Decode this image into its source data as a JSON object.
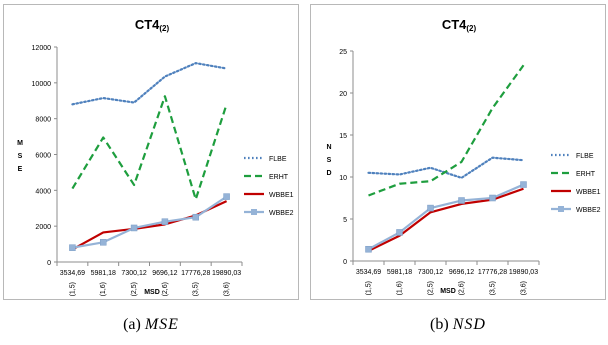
{
  "chart_data": [
    {
      "type": "line",
      "title": "CT4",
      "title_sub": "(2)",
      "xlabel": "MSD",
      "ylabel": [
        "M",
        "S",
        "E"
      ],
      "categories": [
        "3534,69",
        "5981,18",
        "7300,12",
        "9696,12",
        "17776,28",
        "19890,03"
      ],
      "category_pairs": [
        "(1,5)",
        "(1,6)",
        "(2,5)",
        "(2,6)",
        "(3,5)",
        "(3,6)"
      ],
      "ylim": [
        0,
        12000
      ],
      "yticks": [
        "0",
        "2000",
        "4000",
        "6000",
        "8000",
        "10000",
        "12000"
      ],
      "grid": false,
      "legend_position": "right",
      "series": [
        {
          "name": "FLBE",
          "values": [
            8800,
            9150,
            8900,
            10350,
            11100,
            10800
          ],
          "color": "#4f81bd",
          "style": "dotted"
        },
        {
          "name": "ERHT",
          "values": [
            4100,
            6950,
            4300,
            9250,
            3500,
            8800
          ],
          "color": "#1e9e3e",
          "style": "dashed"
        },
        {
          "name": "WBBE1",
          "values": [
            700,
            1650,
            1850,
            2100,
            2600,
            3400
          ],
          "color": "#c00000",
          "style": "solid"
        },
        {
          "name": "WBBE2",
          "values": [
            800,
            1100,
            1900,
            2250,
            2500,
            3650
          ],
          "color": "#95b3d7",
          "style": "solid-marker"
        }
      ]
    },
    {
      "type": "line",
      "title": "CT4",
      "title_sub": "(2)",
      "xlabel": "MSD",
      "ylabel": [
        "N",
        "S",
        "D"
      ],
      "categories": [
        "3534,69",
        "5981,18",
        "7300,12",
        "9696,12",
        "17776,28",
        "19890,03"
      ],
      "category_pairs": [
        "(1,5)",
        "(1,6)",
        "(2,5)",
        "(2,6)",
        "(3,5)",
        "(3,6)"
      ],
      "ylim": [
        0,
        25
      ],
      "yticks": [
        "0",
        "5",
        "10",
        "15",
        "20",
        "25"
      ],
      "grid": false,
      "legend_position": "right",
      "series": [
        {
          "name": "FLBE",
          "values": [
            10.5,
            10.3,
            11.1,
            9.9,
            12.3,
            12.0
          ],
          "color": "#4f81bd",
          "style": "dotted"
        },
        {
          "name": "ERHT",
          "values": [
            7.8,
            9.2,
            9.5,
            11.8,
            18.2,
            23.3
          ],
          "color": "#1e9e3e",
          "style": "dashed"
        },
        {
          "name": "WBBE1",
          "values": [
            1.2,
            3.0,
            5.8,
            6.8,
            7.3,
            8.6
          ],
          "color": "#c00000",
          "style": "solid"
        },
        {
          "name": "WBBE2",
          "values": [
            1.4,
            3.4,
            6.3,
            7.2,
            7.5,
            9.1
          ],
          "color": "#95b3d7",
          "style": "solid-marker"
        }
      ]
    }
  ],
  "captions": [
    {
      "label": "(a)",
      "var": "MSE"
    },
    {
      "label": "(b)",
      "var": "NSD"
    }
  ]
}
